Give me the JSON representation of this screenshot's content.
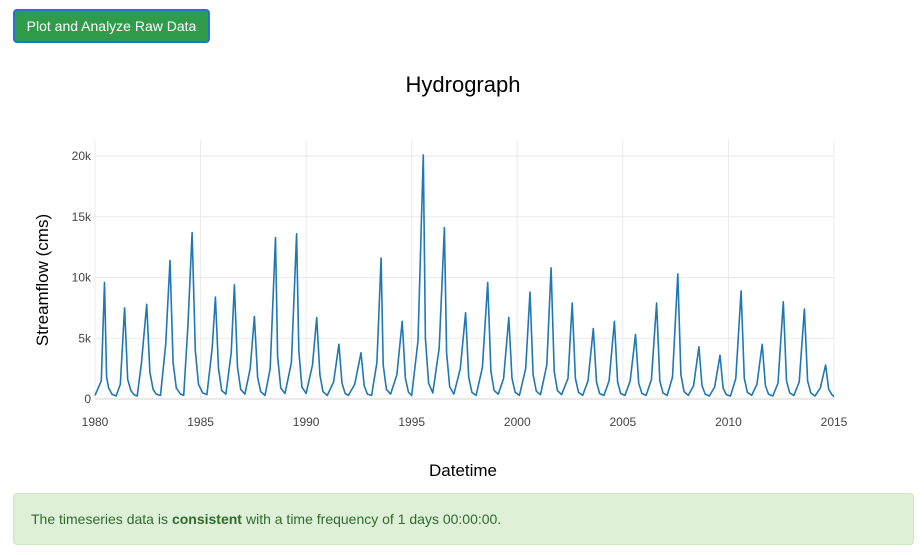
{
  "button": {
    "label": "Plot and Analyze Raw Data"
  },
  "alert": {
    "prefix": "The timeseries data is",
    "status": "consistent",
    "suffix": "with a time frequency of 1 days 00:00:00."
  },
  "colors": {
    "line": "#1f77b4",
    "button": "#2e9c4a",
    "alert_bg": "#dff0d8",
    "alert_text": "#2f6b2f"
  },
  "chart_data": {
    "type": "line",
    "title": "Hydrograph",
    "xlabel": "Datetime",
    "ylabel": "Streamflow (cms)",
    "xlim": [
      1980,
      2015
    ],
    "ylim": [
      0,
      20500
    ],
    "x_ticks": [
      1980,
      1985,
      1990,
      1995,
      2000,
      2005,
      2010,
      2015
    ],
    "x_tick_labels": [
      "1980",
      "1985",
      "1990",
      "1995",
      "2000",
      "2005",
      "2010",
      "2015"
    ],
    "y_ticks": [
      0,
      5000,
      10000,
      15000,
      20000
    ],
    "y_tick_labels": [
      "0",
      "5k",
      "10k",
      "15k",
      "20k"
    ],
    "grid": true,
    "series": [
      {
        "x": [
          1980.0,
          1980.3,
          1980.45,
          1980.55,
          1980.65,
          1980.8,
          1981.0,
          1981.2,
          1981.4,
          1981.55,
          1981.7,
          1981.85,
          1982.0,
          1982.2,
          1982.45,
          1982.6,
          1982.75,
          1982.9,
          1983.1,
          1983.35,
          1983.55,
          1983.7,
          1983.85,
          1984.05,
          1984.2,
          1984.4,
          1984.6,
          1984.75,
          1984.9,
          1985.1,
          1985.3,
          1985.55,
          1985.7,
          1985.85,
          1986.0,
          1986.2,
          1986.45,
          1986.6,
          1986.75,
          1986.9,
          1987.1,
          1987.35,
          1987.55,
          1987.7,
          1987.85,
          1988.05,
          1988.3,
          1988.55,
          1988.65,
          1988.8,
          1989.0,
          1989.3,
          1989.55,
          1989.65,
          1989.8,
          1990.0,
          1990.3,
          1990.5,
          1990.65,
          1990.8,
          1991.0,
          1991.3,
          1991.55,
          1991.7,
          1991.85,
          1992.0,
          1992.3,
          1992.6,
          1992.75,
          1992.9,
          1993.1,
          1993.35,
          1993.55,
          1993.65,
          1993.8,
          1994.0,
          1994.3,
          1994.55,
          1994.7,
          1994.85,
          1995.0,
          1995.3,
          1995.55,
          1995.65,
          1995.8,
          1996.0,
          1996.3,
          1996.55,
          1996.65,
          1996.8,
          1997.0,
          1997.3,
          1997.55,
          1997.7,
          1997.85,
          1998.05,
          1998.35,
          1998.6,
          1998.75,
          1998.9,
          1999.1,
          1999.35,
          1999.6,
          1999.75,
          1999.9,
          2000.1,
          2000.4,
          2000.6,
          2000.75,
          2000.9,
          2001.1,
          2001.4,
          2001.6,
          2001.75,
          2001.9,
          2002.1,
          2002.4,
          2002.6,
          2002.75,
          2002.9,
          2003.1,
          2003.35,
          2003.6,
          2003.75,
          2003.9,
          2004.1,
          2004.35,
          2004.6,
          2004.75,
          2004.9,
          2005.1,
          2005.35,
          2005.6,
          2005.75,
          2005.9,
          2006.1,
          2006.35,
          2006.6,
          2006.75,
          2006.9,
          2007.1,
          2007.35,
          2007.6,
          2007.75,
          2007.9,
          2008.1,
          2008.35,
          2008.6,
          2008.75,
          2008.9,
          2009.1,
          2009.35,
          2009.6,
          2009.75,
          2009.9,
          2010.1,
          2010.35,
          2010.6,
          2010.75,
          2010.9,
          2011.1,
          2011.35,
          2011.6,
          2011.75,
          2011.9,
          2012.1,
          2012.35,
          2012.6,
          2012.75,
          2012.9,
          2013.1,
          2013.35,
          2013.6,
          2013.75,
          2013.9,
          2014.1,
          2014.35,
          2014.6,
          2014.75,
          2014.9,
          2015.0
        ],
        "y": [
          300,
          1500,
          9600,
          1800,
          900,
          400,
          250,
          1200,
          7500,
          1600,
          700,
          350,
          250,
          3000,
          7800,
          2200,
          800,
          400,
          300,
          4500,
          11400,
          3000,
          900,
          400,
          300,
          6000,
          13700,
          4000,
          1200,
          500,
          350,
          4200,
          8400,
          2500,
          700,
          400,
          3800,
          9400,
          2600,
          800,
          400,
          2500,
          6800,
          1800,
          600,
          300,
          2500,
          13300,
          3500,
          900,
          450,
          3000,
          13600,
          4000,
          1000,
          450,
          2800,
          6700,
          2000,
          600,
          300,
          1400,
          4500,
          1300,
          450,
          300,
          1200,
          3800,
          1100,
          400,
          300,
          3000,
          11600,
          2800,
          800,
          400,
          2000,
          6400,
          1700,
          550,
          300,
          4800,
          20100,
          5000,
          1300,
          500,
          4200,
          14100,
          3800,
          1000,
          400,
          2500,
          7100,
          1800,
          550,
          300,
          2600,
          9600,
          2300,
          700,
          400,
          1700,
          6700,
          1700,
          550,
          300,
          2500,
          8800,
          2000,
          650,
          350,
          2800,
          10800,
          2300,
          700,
          350,
          1700,
          7900,
          1700,
          550,
          300,
          1500,
          5800,
          1400,
          450,
          300,
          1500,
          6400,
          1400,
          450,
          300,
          1500,
          5300,
          1300,
          450,
          300,
          1600,
          7900,
          1500,
          500,
          300,
          1800,
          10300,
          2000,
          600,
          300,
          1100,
          4300,
          1100,
          400,
          250,
          1000,
          3600,
          900,
          350,
          250,
          1700,
          8900,
          1700,
          550,
          300,
          1200,
          4500,
          1100,
          400,
          250,
          1300,
          8000,
          1500,
          500,
          300,
          1400,
          7400,
          1500,
          500,
          250,
          900,
          2800,
          800,
          350,
          200
        ]
      }
    ]
  }
}
